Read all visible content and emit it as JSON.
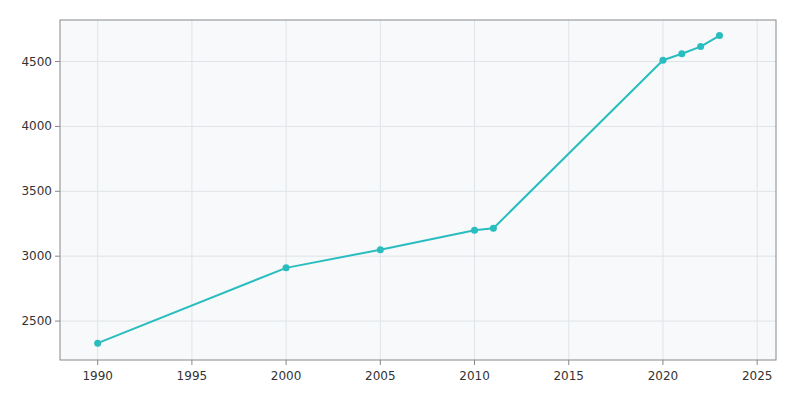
{
  "chart_data": {
    "type": "line",
    "x": [
      1990,
      2000,
      2005,
      2010,
      2011,
      2020,
      2021,
      2022,
      2023
    ],
    "values": [
      2330,
      2910,
      3050,
      3200,
      3215,
      4510,
      4560,
      4615,
      4700
    ],
    "color": "#2abdbf",
    "marker": "circle",
    "xlim": [
      1988,
      2026
    ],
    "ylim": [
      2200,
      4820
    ],
    "xticks": [
      1990,
      1995,
      2000,
      2005,
      2010,
      2015,
      2020,
      2025
    ],
    "yticks": [
      2500,
      3000,
      3500,
      4000,
      4500
    ],
    "grid": true
  }
}
